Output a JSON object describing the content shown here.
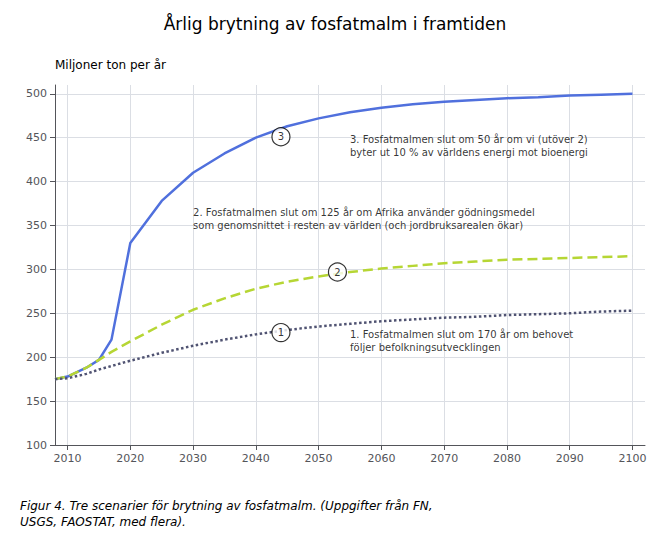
{
  "chart_data": {
    "type": "line",
    "title": "Årlig brytning av fosfatmalm i framtiden",
    "ylabel": "Miljoner ton per år",
    "caption": "Figur 4. Tre scenarier för brytning av fosfatmalm. (Uppgifter från FN,\nUSGS, FAOSTAT, med flera).",
    "x": [
      2008,
      2010,
      2013,
      2015,
      2017,
      2020,
      2025,
      2030,
      2035,
      2040,
      2045,
      2050,
      2055,
      2060,
      2065,
      2070,
      2075,
      2080,
      2085,
      2090,
      2095,
      2100
    ],
    "series": [
      {
        "line_style": "solid",
        "values": [
          175,
          178,
          188,
          197,
          220,
          330,
          378,
          410,
          432,
          450,
          463,
          472,
          479,
          484,
          488,
          491,
          493,
          495,
          496,
          498,
          499,
          500
        ]
      },
      {
        "line_style": "dashed",
        "values": [
          175,
          178,
          188,
          197,
          206,
          218,
          237,
          254,
          267,
          278,
          286,
          292,
          297,
          301,
          304,
          307,
          309,
          311,
          312,
          313,
          314,
          315
        ]
      },
      {
        "line_style": "dotted",
        "values": [
          175,
          176,
          181,
          186,
          190,
          196,
          205,
          213,
          220,
          226,
          231,
          235,
          238,
          241,
          243,
          245,
          246,
          248,
          249,
          250,
          252,
          253
        ]
      }
    ],
    "xlim": [
      2008,
      2102
    ],
    "xticks": [
      2010,
      2020,
      2030,
      2040,
      2050,
      2060,
      2070,
      2080,
      2090,
      2100
    ],
    "ylim": [
      100,
      510
    ],
    "yticks": [
      100,
      150,
      200,
      250,
      300,
      350,
      400,
      450,
      500
    ],
    "grid": true,
    "annotations": [
      {
        "text": "1",
        "x": 2044,
        "y": 228,
        "marker": "circle"
      },
      {
        "text": "2",
        "x": 2053,
        "y": 297,
        "marker": "circle"
      },
      {
        "text": "3",
        "x": 2044,
        "y": 451,
        "marker": "circle"
      },
      {
        "text": "3. Fosfatmalmen slut om 50 år om vi (utöver 2)\nbyter ut 10 % av världens energi mot bioenergi",
        "x": 2055,
        "y": 441
      },
      {
        "text": "2. Fosfatmalmen slut om 125 år om Afrika använder gödningsmedel\nsom genomsnittet i resten av världen (och jordbruksarealen ökar)",
        "x": 2030,
        "y": 357
      },
      {
        "text": "1. Fosfatmalmen slut om 170 år om behovet\nföljer befolkningsutvecklingen",
        "x": 2055,
        "y": 218
      }
    ]
  }
}
